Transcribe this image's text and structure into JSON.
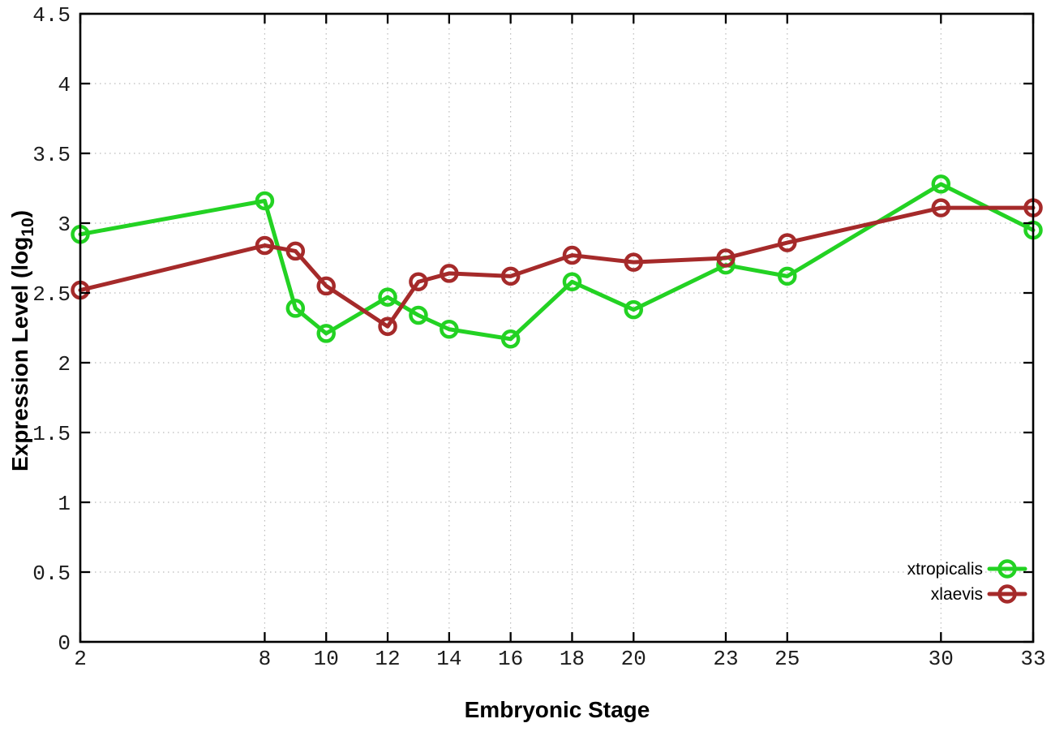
{
  "chart_data": {
    "type": "line",
    "title": "",
    "xlabel": "Embryonic Stage",
    "ylabel": {
      "prefix": "Expression Level (log",
      "sub": "10",
      "suffix": ")"
    },
    "x": [
      2,
      8,
      9,
      10,
      12,
      13,
      14,
      16,
      18,
      20,
      23,
      25,
      30,
      33
    ],
    "xticks": [
      2,
      8,
      10,
      12,
      14,
      16,
      18,
      20,
      23,
      25,
      30,
      33
    ],
    "yticks": [
      0,
      0.5,
      1,
      1.5,
      2,
      2.5,
      3,
      3.5,
      4,
      4.5
    ],
    "xlim": [
      2,
      33
    ],
    "ylim": [
      0,
      4.5
    ],
    "grid": true,
    "legend": {
      "position": "bottom-right",
      "entries": [
        "xtropicalis",
        "xlaevis"
      ]
    },
    "series": [
      {
        "name": "xtropicalis",
        "color": "#23d223",
        "marker": "open-circle",
        "values": [
          2.92,
          3.16,
          2.39,
          2.21,
          2.47,
          2.34,
          2.24,
          2.17,
          2.58,
          2.38,
          2.7,
          2.62,
          3.28,
          2.95
        ]
      },
      {
        "name": "xlaevis",
        "color": "#a52a2a",
        "marker": "open-circle",
        "values": [
          2.52,
          2.84,
          2.8,
          2.55,
          2.26,
          2.58,
          2.64,
          2.62,
          2.77,
          2.72,
          2.75,
          2.86,
          3.11,
          3.11
        ]
      }
    ],
    "colors": {
      "background": "#ffffff",
      "plot_border": "#000000",
      "grid": "#bbbbbb",
      "tick_label": "#1c1c1c"
    }
  }
}
